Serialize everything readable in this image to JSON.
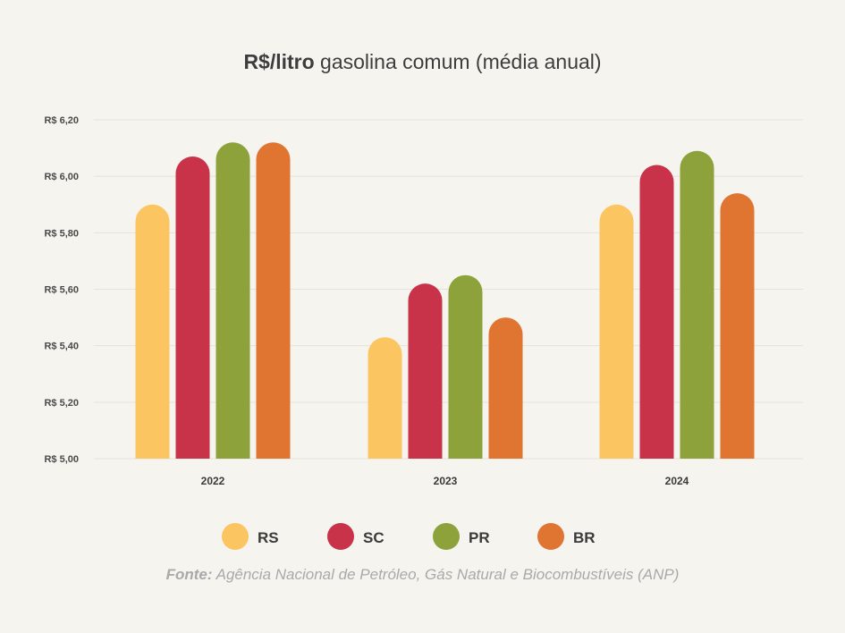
{
  "chart_data": {
    "type": "bar",
    "title_bold": "R$/litro",
    "title_rest": " gasolina comum (média anual)",
    "categories": [
      "2022",
      "2023",
      "2024"
    ],
    "series": [
      {
        "name": "RS",
        "color": "#fbc662",
        "values": [
          5.9,
          5.43,
          5.9
        ]
      },
      {
        "name": "SC",
        "color": "#c8334a",
        "values": [
          6.07,
          5.62,
          6.04
        ]
      },
      {
        "name": "PR",
        "color": "#8da23a",
        "values": [
          6.12,
          5.65,
          6.09
        ]
      },
      {
        "name": "BR",
        "color": "#e07431",
        "values": [
          6.12,
          5.5,
          5.94
        ]
      }
    ],
    "ylim": [
      5.0,
      6.2
    ],
    "yticks": [
      5.0,
      5.2,
      5.4,
      5.6,
      5.8,
      6.0,
      6.2
    ],
    "ytick_labels": [
      "R$ 5,00",
      "R$ 5,20",
      "R$ 5,40",
      "R$ 5,60",
      "R$ 5,80",
      "R$ 6,00",
      "R$ 6,20"
    ],
    "grid": true,
    "legend_position": "bottom"
  },
  "source": {
    "label": "Fonte:",
    "text": " Agência Nacional de Petróleo, Gás Natural e Biocombustíveis (ANP)"
  },
  "colors": {
    "background": "#f6f4ef",
    "grid": "#e4e2dc"
  }
}
